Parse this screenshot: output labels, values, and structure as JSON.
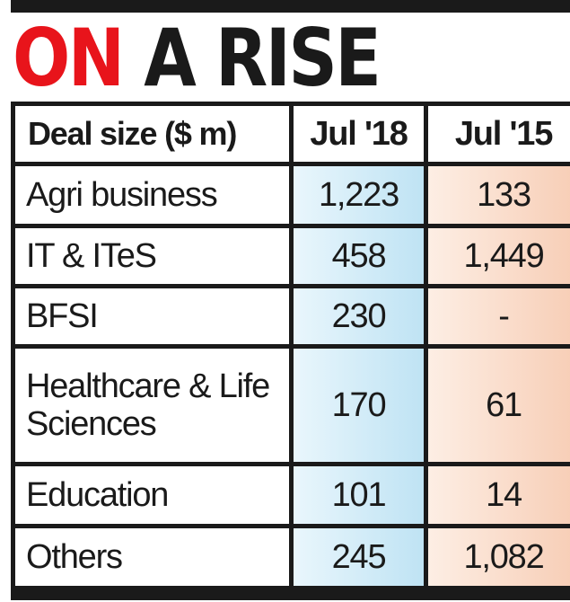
{
  "title": {
    "word1": "ON",
    "word2": "A RISE"
  },
  "chart_data": {
    "type": "table",
    "title": "ON A RISE",
    "columns": [
      "Deal size ($ m)",
      "Jul '18",
      "Jul '15"
    ],
    "rows": [
      {
        "label": "Agri business",
        "jul18": "1,223",
        "jul15": "133"
      },
      {
        "label": "IT & ITeS",
        "jul18": "458",
        "jul15": "1,449"
      },
      {
        "label": "BFSI",
        "jul18": "230",
        "jul15": "-"
      },
      {
        "label": "Healthcare & Life Sciences",
        "jul18": "170",
        "jul15": "61"
      },
      {
        "label": "Education",
        "jul18": "101",
        "jul15": "14"
      },
      {
        "label": "Others",
        "jul18": "245",
        "jul15": "1,082"
      }
    ]
  },
  "colors": {
    "accent_red": "#e8141b",
    "jul18_fill": "#bfe3f4",
    "jul15_fill": "#f7cdb5",
    "border": "#1a1a1a"
  }
}
